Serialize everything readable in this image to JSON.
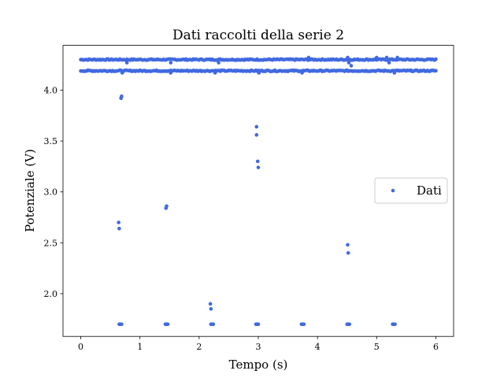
{
  "chart_data": {
    "type": "scatter",
    "title": "Dati raccolti della serie 2",
    "xlabel": "Tempo (s)",
    "ylabel": "Potenziale (V)",
    "xlim": [
      -0.3,
      6.3
    ],
    "ylim": [
      1.58,
      4.44
    ],
    "xticks": [
      "0",
      "1",
      "2",
      "3",
      "4",
      "5",
      "6"
    ],
    "yticks": [
      "2.0",
      "2.5",
      "3.0",
      "3.5",
      "4.0"
    ],
    "grid": false,
    "legend_position": "center-right",
    "marker_color": "#4169e1",
    "series": [
      {
        "name": "Dati",
        "bands": [
          {
            "y": 4.3,
            "x_start": 0.0,
            "x_end": 6.0
          },
          {
            "y": 4.19,
            "x_start": 0.0,
            "x_end": 6.0
          }
        ],
        "points": [
          {
            "x": 0.64,
            "y": 2.7
          },
          {
            "x": 0.65,
            "y": 2.64
          },
          {
            "x": 0.68,
            "y": 3.92
          },
          {
            "x": 0.69,
            "y": 3.94
          },
          {
            "x": 1.44,
            "y": 2.84
          },
          {
            "x": 1.45,
            "y": 2.86
          },
          {
            "x": 2.19,
            "y": 1.9
          },
          {
            "x": 2.2,
            "y": 1.85
          },
          {
            "x": 2.97,
            "y": 3.64
          },
          {
            "x": 2.97,
            "y": 3.56
          },
          {
            "x": 2.99,
            "y": 3.3
          },
          {
            "x": 3.0,
            "y": 3.24
          },
          {
            "x": 4.51,
            "y": 2.48
          },
          {
            "x": 4.52,
            "y": 2.4
          },
          {
            "x": 0.65,
            "y": 1.7
          },
          {
            "x": 0.67,
            "y": 1.7
          },
          {
            "x": 0.69,
            "y": 1.7
          },
          {
            "x": 1.43,
            "y": 1.7
          },
          {
            "x": 1.45,
            "y": 1.7
          },
          {
            "x": 1.47,
            "y": 1.7
          },
          {
            "x": 2.2,
            "y": 1.7
          },
          {
            "x": 2.22,
            "y": 1.7
          },
          {
            "x": 2.24,
            "y": 1.7
          },
          {
            "x": 2.96,
            "y": 1.7
          },
          {
            "x": 2.98,
            "y": 1.7
          },
          {
            "x": 3.0,
            "y": 1.7
          },
          {
            "x": 3.73,
            "y": 1.7
          },
          {
            "x": 3.75,
            "y": 1.7
          },
          {
            "x": 3.77,
            "y": 1.7
          },
          {
            "x": 4.5,
            "y": 1.7
          },
          {
            "x": 4.52,
            "y": 1.7
          },
          {
            "x": 4.54,
            "y": 1.7
          },
          {
            "x": 5.27,
            "y": 1.7
          },
          {
            "x": 5.29,
            "y": 1.7
          },
          {
            "x": 5.31,
            "y": 1.7
          },
          {
            "x": 3.85,
            "y": 4.32
          },
          {
            "x": 4.51,
            "y": 4.32
          },
          {
            "x": 5.0,
            "y": 4.32
          },
          {
            "x": 5.17,
            "y": 4.32
          },
          {
            "x": 5.35,
            "y": 4.32
          },
          {
            "x": 4.53,
            "y": 4.27
          },
          {
            "x": 5.21,
            "y": 4.27
          },
          {
            "x": 4.57,
            "y": 4.24
          },
          {
            "x": 0.78,
            "y": 4.27
          },
          {
            "x": 1.52,
            "y": 4.27
          },
          {
            "x": 2.33,
            "y": 4.27
          },
          {
            "x": 0.7,
            "y": 4.17
          },
          {
            "x": 1.52,
            "y": 4.17
          },
          {
            "x": 2.27,
            "y": 4.17
          },
          {
            "x": 3.01,
            "y": 4.17
          },
          {
            "x": 3.74,
            "y": 4.17
          },
          {
            "x": 5.3,
            "y": 4.17
          }
        ]
      }
    ]
  }
}
